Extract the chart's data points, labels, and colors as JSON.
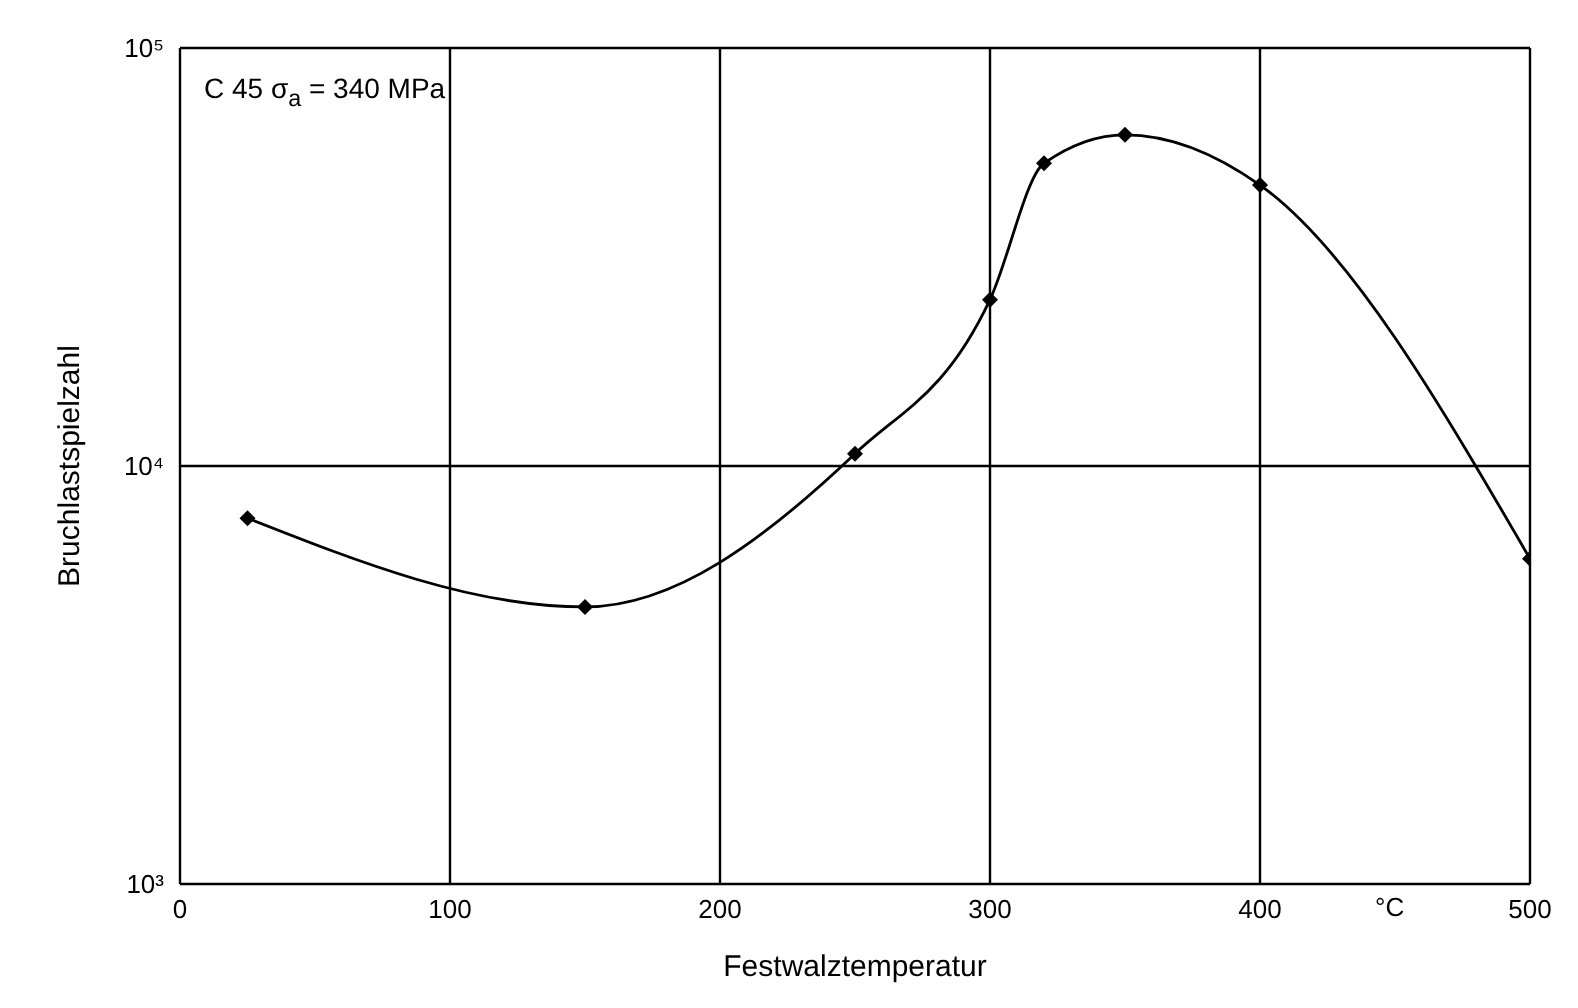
{
  "chart_data": {
    "type": "line",
    "xlabel": "Festwalztemperatur",
    "ylabel": "Bruchlastspielzahl",
    "annotations": [
      "C 45 σ$_{a}$ = 340 MPa",
      "°C"
    ],
    "x": [
      25,
      150,
      250,
      300,
      320,
      350,
      400,
      500
    ],
    "series": [
      {
        "color": "#000000",
        "values": [
          7500,
          4600,
          10700,
          25000,
          53000,
          62000,
          47000,
          6000
        ]
      }
    ],
    "xlim": [
      0,
      500
    ],
    "xticks": [
      0,
      100,
      200,
      300,
      400,
      500
    ],
    "ylim": [
      1000,
      100000
    ],
    "yticks": [
      {
        "value": 1000,
        "label": "10³"
      },
      {
        "value": 10000,
        "label": "10⁴"
      },
      {
        "value": 100000,
        "label": "10⁵"
      }
    ],
    "log": "y",
    "grid": true,
    "marker": "diamond",
    "line_style": "solid",
    "legend": false
  }
}
